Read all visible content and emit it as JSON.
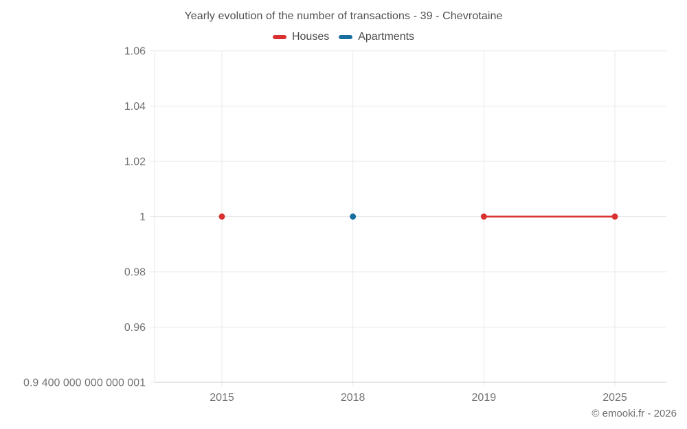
{
  "chart_data": {
    "type": "line",
    "title": "Yearly evolution of the number of transactions - 39 - Chevrotaine",
    "categories": [
      "2015",
      "2018",
      "2019",
      "2025"
    ],
    "ylim": [
      0.94,
      1.06
    ],
    "grid": true,
    "legend_position": "top",
    "y_ticks": [
      {
        "value": 1.06,
        "label": "1.06"
      },
      {
        "value": 1.04,
        "label": "1.04"
      },
      {
        "value": 1.02,
        "label": "1.02"
      },
      {
        "value": 1.0,
        "label": "1"
      },
      {
        "value": 0.98,
        "label": "0.98"
      },
      {
        "value": 0.96,
        "label": "0.96"
      },
      {
        "value": 0.94,
        "label": "0.9 400 000 000 000 001"
      }
    ],
    "series": [
      {
        "name": "Houses",
        "color": "#d8312f",
        "data": [
          {
            "category": "2015",
            "value": 1
          },
          {
            "category": "2019",
            "value": 1
          },
          {
            "category": "2025",
            "value": 1
          }
        ]
      },
      {
        "name": "Apartments",
        "color": "#176fa0",
        "data": [
          {
            "category": "2018",
            "value": 1
          }
        ]
      }
    ],
    "colors": {
      "gridline": "#e8e8e8",
      "axis_line": "#c9c9c9",
      "tick_text": "#737373"
    }
  },
  "footer": {
    "attribution": "© emooki.fr - 2026"
  }
}
